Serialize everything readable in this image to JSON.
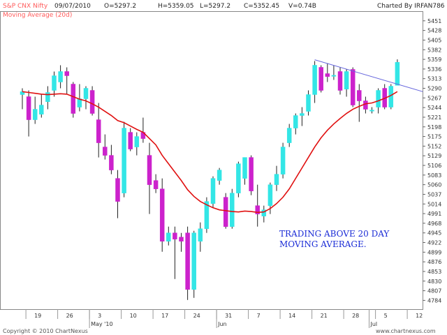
{
  "header": {
    "symbol": "S&P CNX Nifty",
    "date": "09/07/2010",
    "open": "O=5297.2",
    "high": "H=5359.05",
    "low": "L=5297.2",
    "close": "C=5352.45",
    "volume": "V=0.74B",
    "charted_by": "Charted By IRFAN786",
    "ma_label": "Moving Average (20d)"
  },
  "footer": {
    "copyright": "Copyright © 2010 ChartNexus",
    "site": "www.chartnexus.com"
  },
  "annotation": {
    "line1": "TRADING ABOVE 20 DAY",
    "line2": "MOVING AVERAGE."
  },
  "chart_data": {
    "type": "candlestick",
    "ylim": [
      4763,
      5474
    ],
    "y_ticks": [
      5451,
      5428,
      5405,
      5382,
      5359,
      5336,
      5313,
      5290,
      5267,
      5244,
      5221,
      5198,
      5175,
      5152,
      5129,
      5106,
      5083,
      5060,
      5037,
      5014,
      4991,
      4968,
      4945,
      4922,
      4899,
      4876,
      4853,
      4830,
      4807,
      4784
    ],
    "x_ticks": [
      {
        "label": "19",
        "i": 1
      },
      {
        "label": "26",
        "i": 6
      },
      {
        "label": "3",
        "i": 11
      },
      {
        "label": "10",
        "i": 16
      },
      {
        "label": "17",
        "i": 21
      },
      {
        "label": "24",
        "i": 26
      },
      {
        "label": "31",
        "i": 31
      },
      {
        "label": "7",
        "i": 36
      },
      {
        "label": "14",
        "i": 41
      },
      {
        "label": "21",
        "i": 46
      },
      {
        "label": "28",
        "i": 51
      },
      {
        "label": "5",
        "i": 56
      },
      {
        "label": "12",
        "i": 61
      }
    ],
    "month_labels": [
      {
        "label": "May '10",
        "i": 11
      },
      {
        "label": "Jun",
        "i": 31
      },
      {
        "label": "Jul",
        "i": 55
      }
    ],
    "colors": {
      "up": "#33e6e6",
      "down": "#cc22cc",
      "ma": "#e01010",
      "trendline": "#6666dd"
    },
    "candles": [
      {
        "o": 5275,
        "h": 5290,
        "l": 5240,
        "c": 5282
      },
      {
        "o": 5270,
        "h": 5285,
        "l": 5175,
        "c": 5215
      },
      {
        "o": 5215,
        "h": 5270,
        "l": 5205,
        "c": 5240
      },
      {
        "o": 5228,
        "h": 5275,
        "l": 5220,
        "c": 5250
      },
      {
        "o": 5258,
        "h": 5295,
        "l": 5240,
        "c": 5280
      },
      {
        "o": 5285,
        "h": 5330,
        "l": 5270,
        "c": 5320
      },
      {
        "o": 5305,
        "h": 5345,
        "l": 5290,
        "c": 5330
      },
      {
        "o": 5330,
        "h": 5340,
        "l": 5275,
        "c": 5320
      },
      {
        "o": 5300,
        "h": 5305,
        "l": 5220,
        "c": 5230
      },
      {
        "o": 5245,
        "h": 5300,
        "l": 5235,
        "c": 5265
      },
      {
        "o": 5265,
        "h": 5295,
        "l": 5240,
        "c": 5290
      },
      {
        "o": 5285,
        "h": 5295,
        "l": 5225,
        "c": 5230
      },
      {
        "o": 5215,
        "h": 5255,
        "l": 5125,
        "c": 5160
      },
      {
        "o": 5150,
        "h": 5180,
        "l": 5120,
        "c": 5130
      },
      {
        "o": 5130,
        "h": 5155,
        "l": 5085,
        "c": 5095
      },
      {
        "o": 5075,
        "h": 5095,
        "l": 4980,
        "c": 5020
      },
      {
        "o": 5040,
        "h": 5210,
        "l": 5030,
        "c": 5195
      },
      {
        "o": 5185,
        "h": 5195,
        "l": 5140,
        "c": 5145
      },
      {
        "o": 5150,
        "h": 5185,
        "l": 5130,
        "c": 5175
      },
      {
        "o": 5185,
        "h": 5220,
        "l": 5160,
        "c": 5170
      },
      {
        "o": 5130,
        "h": 5160,
        "l": 4990,
        "c": 5060
      },
      {
        "o": 5070,
        "h": 5085,
        "l": 5040,
        "c": 5050
      },
      {
        "o": 5050,
        "h": 5075,
        "l": 4900,
        "c": 4925
      },
      {
        "o": 4925,
        "h": 4960,
        "l": 4915,
        "c": 4945
      },
      {
        "o": 4945,
        "h": 4960,
        "l": 4835,
        "c": 4930
      },
      {
        "o": 4935,
        "h": 4945,
        "l": 4900,
        "c": 4925
      },
      {
        "o": 4945,
        "h": 4960,
        "l": 4785,
        "c": 4810
      },
      {
        "o": 4810,
        "h": 4950,
        "l": 4790,
        "c": 4945
      },
      {
        "o": 4925,
        "h": 4970,
        "l": 4900,
        "c": 4955
      },
      {
        "o": 4955,
        "h": 5030,
        "l": 4945,
        "c": 5020
      },
      {
        "o": 5015,
        "h": 5080,
        "l": 5005,
        "c": 5075
      },
      {
        "o": 5070,
        "h": 5100,
        "l": 5060,
        "c": 5095
      },
      {
        "o": 5030,
        "h": 5040,
        "l": 4955,
        "c": 4960
      },
      {
        "o": 4960,
        "h": 5050,
        "l": 4955,
        "c": 5040
      },
      {
        "o": 5040,
        "h": 5115,
        "l": 5030,
        "c": 5110
      },
      {
        "o": 5075,
        "h": 5125,
        "l": 5060,
        "c": 5125
      },
      {
        "o": 5125,
        "h": 5130,
        "l": 5035,
        "c": 5045
      },
      {
        "o": 5010,
        "h": 5060,
        "l": 4960,
        "c": 4990
      },
      {
        "o": 4985,
        "h": 5010,
        "l": 4970,
        "c": 5000
      },
      {
        "o": 5010,
        "h": 5065,
        "l": 4990,
        "c": 5060
      },
      {
        "o": 5060,
        "h": 5105,
        "l": 5045,
        "c": 5085
      },
      {
        "o": 5085,
        "h": 5160,
        "l": 5075,
        "c": 5150
      },
      {
        "o": 5160,
        "h": 5205,
        "l": 5150,
        "c": 5195
      },
      {
        "o": 5195,
        "h": 5230,
        "l": 5180,
        "c": 5225
      },
      {
        "o": 5225,
        "h": 5245,
        "l": 5200,
        "c": 5230
      },
      {
        "o": 5235,
        "h": 5285,
        "l": 5225,
        "c": 5275
      },
      {
        "o": 5275,
        "h": 5355,
        "l": 5255,
        "c": 5345
      },
      {
        "o": 5340,
        "h": 5345,
        "l": 5280,
        "c": 5285
      },
      {
        "o": 5325,
        "h": 5350,
        "l": 5305,
        "c": 5318
      },
      {
        "o": 5320,
        "h": 5345,
        "l": 5310,
        "c": 5321
      },
      {
        "o": 5330,
        "h": 5340,
        "l": 5275,
        "c": 5285
      },
      {
        "o": 5288,
        "h": 5335,
        "l": 5270,
        "c": 5330
      },
      {
        "o": 5335,
        "h": 5340,
        "l": 5245,
        "c": 5250
      },
      {
        "o": 5285,
        "h": 5300,
        "l": 5210,
        "c": 5260
      },
      {
        "o": 5260,
        "h": 5270,
        "l": 5230,
        "c": 5240
      },
      {
        "o": 5237,
        "h": 5245,
        "l": 5230,
        "c": 5238
      },
      {
        "o": 5245,
        "h": 5290,
        "l": 5230,
        "c": 5285
      },
      {
        "o": 5290,
        "h": 5300,
        "l": 5240,
        "c": 5245
      },
      {
        "o": 5245,
        "h": 5300,
        "l": 5240,
        "c": 5295
      },
      {
        "o": 5297,
        "h": 5359,
        "l": 5297,
        "c": 5352
      }
    ],
    "ma": [
      5282,
      5280,
      5278,
      5276,
      5275,
      5276,
      5277,
      5276,
      5270,
      5264,
      5260,
      5253,
      5245,
      5235,
      5225,
      5213,
      5208,
      5200,
      5192,
      5185,
      5170,
      5155,
      5130,
      5110,
      5090,
      5070,
      5048,
      5032,
      5020,
      5012,
      5005,
      5000,
      4998,
      4996,
      4995,
      4997,
      4996,
      4994,
      4995,
      5003,
      5015,
      5030,
      5050,
      5075,
      5100,
      5125,
      5150,
      5172,
      5190,
      5205,
      5218,
      5230,
      5240,
      5247,
      5253,
      5255,
      5260,
      5266,
      5273,
      5282
    ],
    "trendline": [
      {
        "i": 46,
        "v": 5358
      },
      {
        "i": 63,
        "v": 5282
      }
    ]
  }
}
